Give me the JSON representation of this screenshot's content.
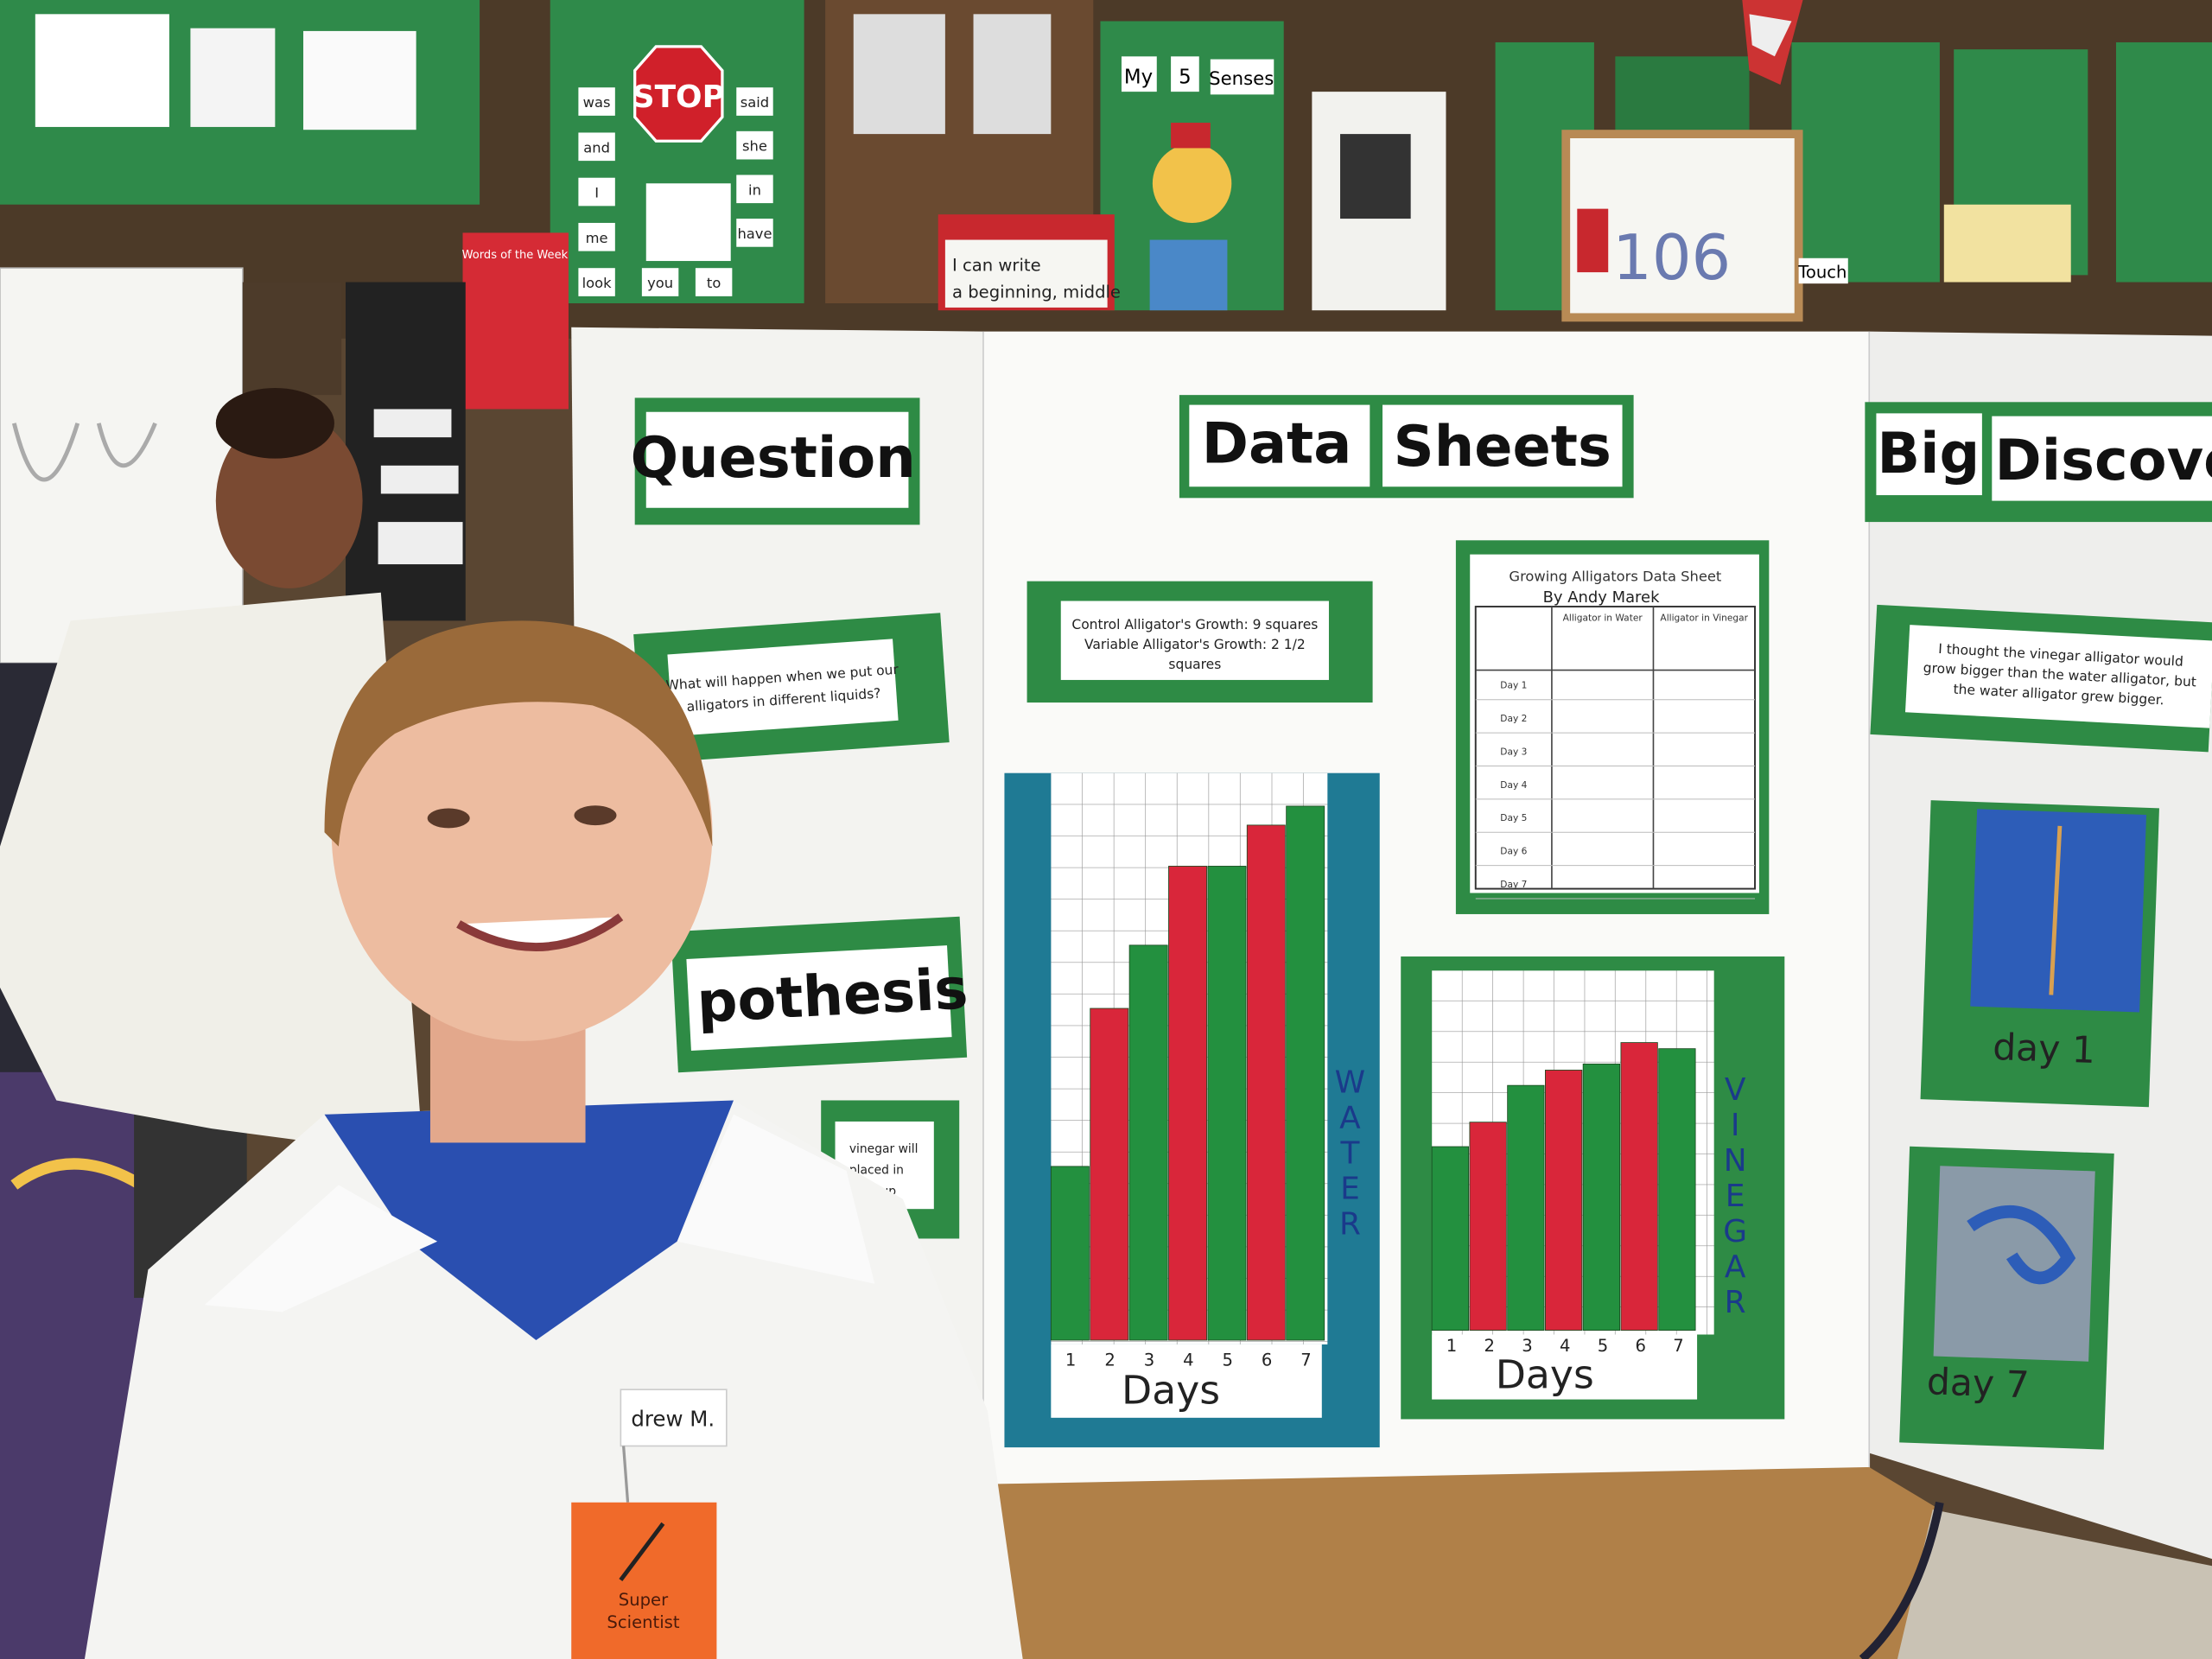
{
  "classroom": {
    "stop_sign": "STOP",
    "word_wall": [
      "was",
      "and",
      "I",
      "me",
      "look",
      "you",
      "to",
      "said",
      "she",
      "in",
      "have"
    ],
    "senses_title": [
      "My",
      "5",
      "Senses"
    ],
    "sentence_card": [
      "I can write",
      "a beginning, middle"
    ],
    "words_of_week": "Words of the Week",
    "counter": "106",
    "touch_card": "Touch"
  },
  "board": {
    "question_heading": "Question",
    "question_lines": [
      "What will happen when we put our",
      "alligators in different liquids?"
    ],
    "data_heading": [
      "Data",
      "Sheets"
    ],
    "growth_note": [
      "Control Alligator's Growth: 9 squares",
      "Variable Alligator's Growth: 2 1/2",
      "squares"
    ],
    "data_sheet": {
      "title": "Growing Alligators Data Sheet",
      "author": "By Andy Marek",
      "columns": [
        "Alligator in Water",
        "Alligator in Vinegar"
      ],
      "rows": [
        "Day 1",
        "Day 2",
        "Day 3",
        "Day 4",
        "Day 5",
        "Day 6",
        "Day 7"
      ]
    },
    "hypothesis_heading": "pothesis",
    "hypothesis_lines": [
      "vinegar will",
      "placed in",
      "soak up"
    ],
    "discovery_heading": [
      "Big",
      "Discove"
    ],
    "discovery_lines": [
      "I thought the vinegar alligator would",
      "grow bigger than the water alligator, but",
      "the water alligator grew bigger."
    ],
    "photo_labels": [
      "day 1",
      "day 7"
    ],
    "water_chart": {
      "label": "WATER",
      "axis_label": "Days",
      "days": [
        1,
        2,
        3,
        4,
        5,
        6,
        7
      ],
      "values": [
        5.5,
        10.5,
        12.5,
        15,
        15,
        16.3,
        16.9
      ],
      "colors": [
        "#23903f",
        "#d9263a"
      ]
    },
    "vinegar_chart": {
      "label": "VINEGAR",
      "axis_label": "Days",
      "days": [
        1,
        2,
        3,
        4,
        5,
        6,
        7
      ],
      "values": [
        6,
        6.8,
        8,
        8.5,
        8.7,
        9.4,
        9.2
      ],
      "colors": [
        "#23903f",
        "#d9263a"
      ]
    }
  },
  "student": {
    "name_tag": "drew M.",
    "badge": [
      "Super",
      "Scientist"
    ]
  }
}
